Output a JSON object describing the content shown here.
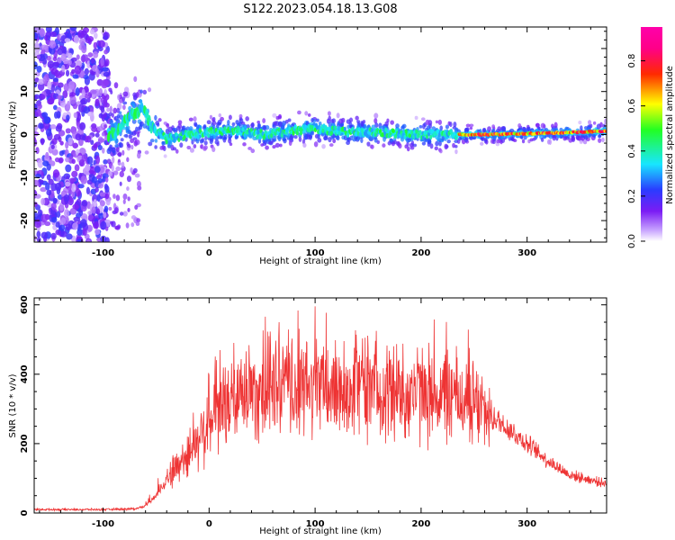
{
  "title": "S122.2023.054.18.13.G08",
  "chart_data": [
    {
      "type": "heatmap",
      "xlabel": "Height of straight line (km)",
      "ylabel": "Frequency (Hz)",
      "xlim": [
        -165,
        375
      ],
      "ylim": [
        -25,
        25
      ],
      "x_ticks": [
        -100,
        0,
        100,
        200,
        300
      ],
      "y_ticks": [
        -20,
        -10,
        0,
        10,
        20
      ],
      "grid": false,
      "colorbar": {
        "label": "Normalized spectral amplitude",
        "range": [
          0,
          0.95
        ],
        "ticks": [
          0.0,
          0.2,
          0.4,
          0.6,
          0.8
        ],
        "colormap": "rainbow (purple-blue-cyan-green-yellow-red-magenta)"
      },
      "ridge": {
        "description": "Dominant Doppler frequency ridge vs height",
        "x": [
          -90,
          -80,
          -70,
          -62,
          -55,
          -40,
          -20,
          0,
          20,
          50,
          80,
          100,
          130,
          160,
          190,
          220,
          240,
          260,
          300,
          340,
          375
        ],
        "y": [
          0,
          3,
          5,
          6,
          2,
          -1,
          0,
          0.5,
          1,
          0,
          1,
          1.5,
          0.5,
          0.5,
          0,
          0,
          0,
          0,
          0.2,
          0.5,
          0.8
        ]
      },
      "noise_region": [
        -165,
        -100
      ]
    },
    {
      "type": "line",
      "xlabel": "Height of straight line (km)",
      "ylabel": "SNR (10 * v/v)",
      "xlim": [
        -165,
        375
      ],
      "ylim": [
        0,
        620
      ],
      "x_ticks": [
        -100,
        0,
        100,
        200,
        300
      ],
      "y_ticks": [
        0,
        200,
        400,
        600
      ],
      "grid": false,
      "series": [
        {
          "color": "#ee3333",
          "envelope_x": [
            -165,
            -100,
            -70,
            -60,
            -50,
            -40,
            -20,
            0,
            20,
            40,
            60,
            100,
            150,
            200,
            240,
            260,
            280,
            300,
            320,
            340,
            360,
            375
          ],
          "envelope_y": [
            10,
            10,
            12,
            20,
            50,
            100,
            170,
            260,
            320,
            350,
            360,
            360,
            355,
            345,
            330,
            290,
            250,
            200,
            150,
            110,
            95,
            85
          ]
        }
      ]
    }
  ]
}
